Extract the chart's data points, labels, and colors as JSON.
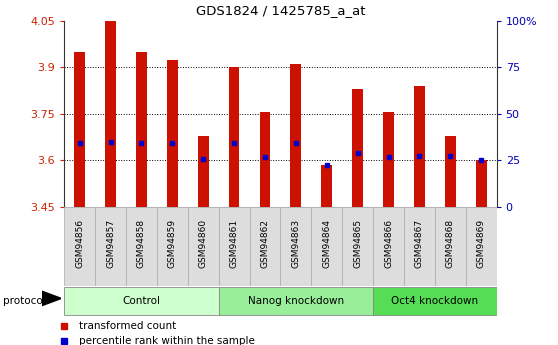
{
  "title": "GDS1824 / 1425785_a_at",
  "samples": [
    "GSM94856",
    "GSM94857",
    "GSM94858",
    "GSM94859",
    "GSM94860",
    "GSM94861",
    "GSM94862",
    "GSM94863",
    "GSM94864",
    "GSM94865",
    "GSM94866",
    "GSM94867",
    "GSM94868",
    "GSM94869"
  ],
  "bar_tops": [
    3.95,
    4.05,
    3.95,
    3.925,
    3.68,
    3.9,
    3.755,
    3.91,
    3.585,
    3.83,
    3.755,
    3.84,
    3.68,
    3.6
  ],
  "bar_bottom": 3.45,
  "percentile_y": [
    3.655,
    3.66,
    3.655,
    3.655,
    3.605,
    3.655,
    3.61,
    3.655,
    3.585,
    3.625,
    3.61,
    3.615,
    3.615,
    3.602
  ],
  "ylim": [
    3.45,
    4.05
  ],
  "yticks": [
    3.45,
    3.6,
    3.75,
    3.9,
    4.05
  ],
  "ytick_labels": [
    "3.45",
    "3.6",
    "3.75",
    "3.9",
    "4.05"
  ],
  "right_yticks_pct": [
    0,
    25,
    50,
    75,
    100
  ],
  "right_ytick_labels": [
    "0",
    "25",
    "50",
    "75",
    "100%"
  ],
  "bar_color": "#cc1100",
  "percentile_color": "#0000cc",
  "groups": [
    {
      "label": "Control",
      "start": 0,
      "end": 5,
      "color": "#ccffcc"
    },
    {
      "label": "Nanog knockdown",
      "start": 5,
      "end": 10,
      "color": "#99ee99"
    },
    {
      "label": "Oct4 knockdown",
      "start": 10,
      "end": 14,
      "color": "#55dd55"
    }
  ],
  "protocol_label": "protocol",
  "legend_red_label": "transformed count",
  "legend_blue_label": "percentile rank within the sample",
  "bar_width": 0.35,
  "grid_yticks": [
    3.6,
    3.75,
    3.9
  ],
  "plot_bg": "#ffffff",
  "label_cell_bg": "#dddddd",
  "label_cell_edge": "#aaaaaa"
}
